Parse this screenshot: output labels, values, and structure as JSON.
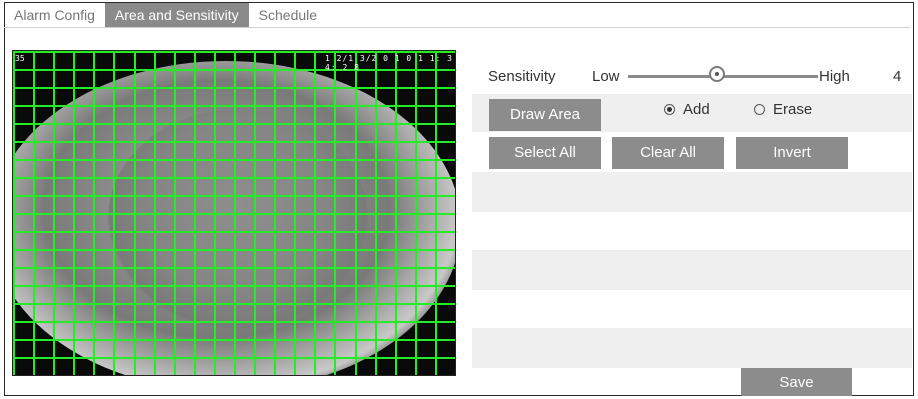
{
  "tabs": [
    {
      "label": "Alarm Config",
      "active": false
    },
    {
      "label": "Area and Sensitivity",
      "active": true
    },
    {
      "label": "Schedule",
      "active": false
    }
  ],
  "video": {
    "osd_left": "35",
    "osd_right": "1 2/1 3/2 0 1 0  1 1: 3 4: 2 8",
    "grid": {
      "cols": 22,
      "rows": 18,
      "color": "#22ee22"
    }
  },
  "sensitivity": {
    "label": "Sensitivity",
    "low_label": "Low",
    "high_label": "High",
    "value": "4",
    "level": 4,
    "min": 1,
    "max": 8
  },
  "draw_area_button": "Draw Area",
  "mode": {
    "options": [
      {
        "label": "Add",
        "selected": true
      },
      {
        "label": "Erase",
        "selected": false
      }
    ]
  },
  "buttons": {
    "select_all": "Select All",
    "clear_all": "Clear All",
    "invert": "Invert",
    "save": "Save"
  },
  "colors": {
    "tab_active_bg": "#8a8a8a",
    "button_bg": "#8c8c8c",
    "band_bg": "#efefef",
    "grid_line": "#22ee22"
  }
}
